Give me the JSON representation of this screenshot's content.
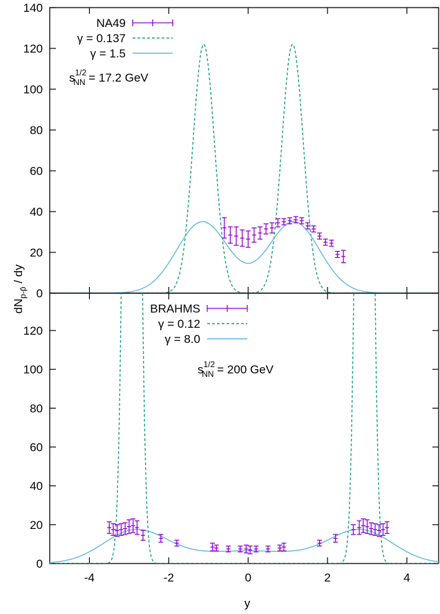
{
  "chart_data": [
    {
      "type": "line",
      "panel": "top",
      "ylabel": "dN_{p-p̄}/dy",
      "xlim": [
        -5,
        4.8
      ],
      "ylim": [
        0,
        140
      ],
      "yticks": [
        0,
        20,
        40,
        60,
        80,
        100,
        120,
        140
      ],
      "energy_label": "s_NN^{1/2} = 17.2 GeV",
      "legend_position": "top-left",
      "series": [
        {
          "name": "NA49",
          "kind": "data-errorbars",
          "color": "#9400d3",
          "points": [
            {
              "x": -0.6,
              "y": 32.0,
              "err": 5.0
            },
            {
              "x": -0.45,
              "y": 28.5,
              "err": 4.0
            },
            {
              "x": -0.3,
              "y": 28.0,
              "err": 4.5
            },
            {
              "x": -0.15,
              "y": 27.0,
              "err": 4.0
            },
            {
              "x": 0.0,
              "y": 26.5,
              "err": 4.0
            },
            {
              "x": 0.15,
              "y": 28.5,
              "err": 3.5
            },
            {
              "x": 0.3,
              "y": 29.5,
              "err": 3.0
            },
            {
              "x": 0.45,
              "y": 31.5,
              "err": 2.5
            },
            {
              "x": 0.6,
              "y": 32.0,
              "err": 2.5
            },
            {
              "x": 0.75,
              "y": 34.5,
              "err": 2.0
            },
            {
              "x": 0.9,
              "y": 35.0,
              "err": 1.5
            },
            {
              "x": 1.05,
              "y": 35.5,
              "err": 1.5
            },
            {
              "x": 1.2,
              "y": 36.0,
              "err": 1.5
            },
            {
              "x": 1.35,
              "y": 35.5,
              "err": 1.5
            },
            {
              "x": 1.5,
              "y": 33.0,
              "err": 1.5
            },
            {
              "x": 1.65,
              "y": 31.5,
              "err": 1.5
            },
            {
              "x": 1.8,
              "y": 28.0,
              "err": 1.5
            },
            {
              "x": 1.95,
              "y": 25.0,
              "err": 1.5
            },
            {
              "x": 2.1,
              "y": 24.5,
              "err": 1.5
            },
            {
              "x": 2.25,
              "y": 19.0,
              "err": 1.5
            },
            {
              "x": 2.4,
              "y": 18.0,
              "err": 3.0
            }
          ]
        },
        {
          "name": "γ = 0.137",
          "kind": "model-curve",
          "style": "dashed",
          "color": "#1a9e82",
          "peaks": [
            {
              "mu": -1.12,
              "height": 122.0,
              "sigma": 0.27
            },
            {
              "mu": 1.12,
              "height": 122.0,
              "sigma": 0.27
            }
          ]
        },
        {
          "name": "γ = 1.5",
          "kind": "model-curve",
          "style": "solid",
          "color": "#5fb8e0",
          "peaks": [
            {
              "mu": -1.15,
              "height": 35.0,
              "sigma": 0.65
            },
            {
              "mu": 1.15,
              "height": 35.0,
              "sigma": 0.65
            }
          ]
        }
      ]
    },
    {
      "type": "line",
      "panel": "bottom",
      "xlabel": "y",
      "xlim": [
        -5,
        4.8
      ],
      "ylim": [
        0,
        140
      ],
      "yticks": [
        0,
        20,
        40,
        60,
        80,
        100,
        120
      ],
      "xticks": [
        -4,
        -2,
        0,
        2,
        4
      ],
      "energy_label": "s_NN^{1/2} = 200 GeV",
      "legend_position": "top-center",
      "series": [
        {
          "name": "BRAHMS",
          "kind": "data-errorbars",
          "color": "#9400d3",
          "points": [
            {
              "x": -3.5,
              "y": 18.5,
              "err": 3.0
            },
            {
              "x": -3.4,
              "y": 17.5,
              "err": 3.0
            },
            {
              "x": -3.3,
              "y": 17.0,
              "err": 3.0
            },
            {
              "x": -3.2,
              "y": 17.5,
              "err": 3.0
            },
            {
              "x": -3.1,
              "y": 18.0,
              "err": 3.0
            },
            {
              "x": -3.0,
              "y": 19.0,
              "err": 3.5
            },
            {
              "x": -2.9,
              "y": 19.5,
              "err": 3.5
            },
            {
              "x": -2.8,
              "y": 18.5,
              "err": 3.5
            },
            {
              "x": -2.65,
              "y": 14.5,
              "err": 2.5
            },
            {
              "x": -2.2,
              "y": 13.0,
              "err": 2.0
            },
            {
              "x": -1.8,
              "y": 10.5,
              "err": 1.5
            },
            {
              "x": -0.9,
              "y": 8.5,
              "err": 2.0
            },
            {
              "x": -0.8,
              "y": 8.0,
              "err": 1.5
            },
            {
              "x": -0.5,
              "y": 7.5,
              "err": 1.5
            },
            {
              "x": -0.2,
              "y": 7.5,
              "err": 1.5
            },
            {
              "x": -0.05,
              "y": 7.5,
              "err": 2.0
            },
            {
              "x": 0.05,
              "y": 7.0,
              "err": 2.0
            },
            {
              "x": 0.2,
              "y": 7.5,
              "err": 1.5
            },
            {
              "x": 0.5,
              "y": 7.5,
              "err": 1.5
            },
            {
              "x": 0.8,
              "y": 8.0,
              "err": 1.5
            },
            {
              "x": 0.9,
              "y": 8.5,
              "err": 2.0
            },
            {
              "x": 1.8,
              "y": 10.5,
              "err": 1.5
            },
            {
              "x": 2.2,
              "y": 13.0,
              "err": 2.0
            },
            {
              "x": 2.65,
              "y": 17.5,
              "err": 2.5
            },
            {
              "x": 2.8,
              "y": 18.5,
              "err": 3.5
            },
            {
              "x": 2.9,
              "y": 19.5,
              "err": 3.5
            },
            {
              "x": 3.0,
              "y": 19.0,
              "err": 3.5
            },
            {
              "x": 3.1,
              "y": 18.0,
              "err": 3.0
            },
            {
              "x": 3.2,
              "y": 17.5,
              "err": 3.0
            },
            {
              "x": 3.3,
              "y": 17.0,
              "err": 3.0
            },
            {
              "x": 3.4,
              "y": 17.5,
              "err": 3.0
            },
            {
              "x": 3.5,
              "y": 18.5,
              "err": 3.0
            }
          ]
        },
        {
          "name": "γ = 0.12",
          "kind": "model-curve",
          "style": "dashed",
          "color": "#1a9e82",
          "peaks": [
            {
              "mu": -2.93,
              "height": 700.0,
              "sigma": 0.15
            },
            {
              "mu": 2.93,
              "height": 700.0,
              "sigma": 0.15
            }
          ]
        },
        {
          "name": "γ = 8.0",
          "kind": "model-curve",
          "style": "solid",
          "color": "#5fb8e0",
          "peaks": [
            {
              "mu": -2.85,
              "height": 16.5,
              "sigma": 0.8
            },
            {
              "mu": 2.85,
              "height": 16.5,
              "sigma": 0.8
            }
          ],
          "baseline": 6.5
        }
      ]
    }
  ]
}
